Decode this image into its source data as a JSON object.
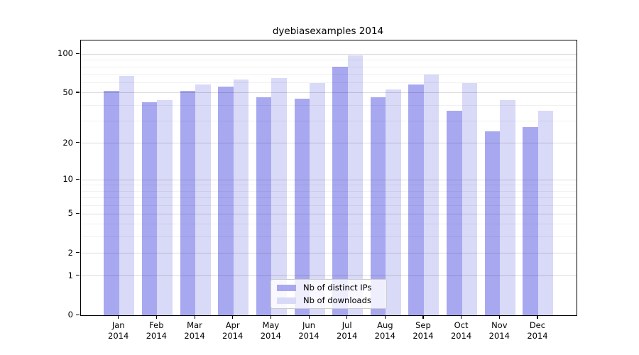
{
  "chart_data": {
    "type": "bar",
    "title": "dyebiasexamples 2014",
    "categories": [
      "Jan",
      "Feb",
      "Mar",
      "Apr",
      "May",
      "Jun",
      "Jul",
      "Aug",
      "Sep",
      "Oct",
      "Nov",
      "Dec"
    ],
    "year_label": "2014",
    "series": [
      {
        "name": "Nb of distinct IPs",
        "color": "#a8a8f0",
        "values": [
          52,
          42,
          52,
          56,
          46,
          45,
          80,
          46,
          58,
          36,
          25,
          27
        ]
      },
      {
        "name": "Nb of downloads",
        "color": "#d9d9f8",
        "values": [
          68,
          44,
          58,
          64,
          65,
          60,
          98,
          53,
          70,
          60,
          44,
          36
        ]
      }
    ],
    "yscale": "log10(value+1)",
    "yticks": [
      100,
      50,
      20,
      10,
      5,
      2,
      1,
      0
    ],
    "yticks_minor": [
      90,
      80,
      70,
      60,
      40,
      30,
      9,
      8,
      7,
      6,
      4,
      3
    ],
    "ylim": [
      0,
      128
    ],
    "xlim": [
      -1,
      12
    ],
    "grid": true,
    "grid_above_bars": true,
    "legend_position": "lower center",
    "bar_width_fraction": 0.4
  }
}
